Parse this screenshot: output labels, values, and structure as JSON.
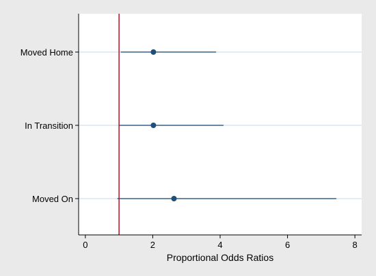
{
  "chart_data": {
    "type": "scatter",
    "title": "",
    "xlabel": "Proportional Odds Ratios",
    "ylabel": "",
    "xlim": [
      -0.2,
      8.2
    ],
    "xticks": [
      0,
      2,
      4,
      6,
      8
    ],
    "reference_line": {
      "x": 1,
      "color": "#b0152a"
    },
    "categories": [
      "Moved Home",
      "In Transition",
      "Moved On"
    ],
    "points": [
      {
        "label": "Moved Home",
        "or": 2.02,
        "ci_low": 1.05,
        "ci_high": 3.88
      },
      {
        "label": "In Transition",
        "or": 2.02,
        "ci_low": 1.0,
        "ci_high": 4.1
      },
      {
        "label": "Moved On",
        "or": 2.63,
        "ci_low": 0.95,
        "ci_high": 7.45
      }
    ],
    "grid": true,
    "colors": {
      "point": "#1f4e79",
      "ci": "#1f4e79",
      "grid": "#e2ecf2",
      "background": "#ffffff",
      "outer_background": "#eaeaea"
    }
  }
}
